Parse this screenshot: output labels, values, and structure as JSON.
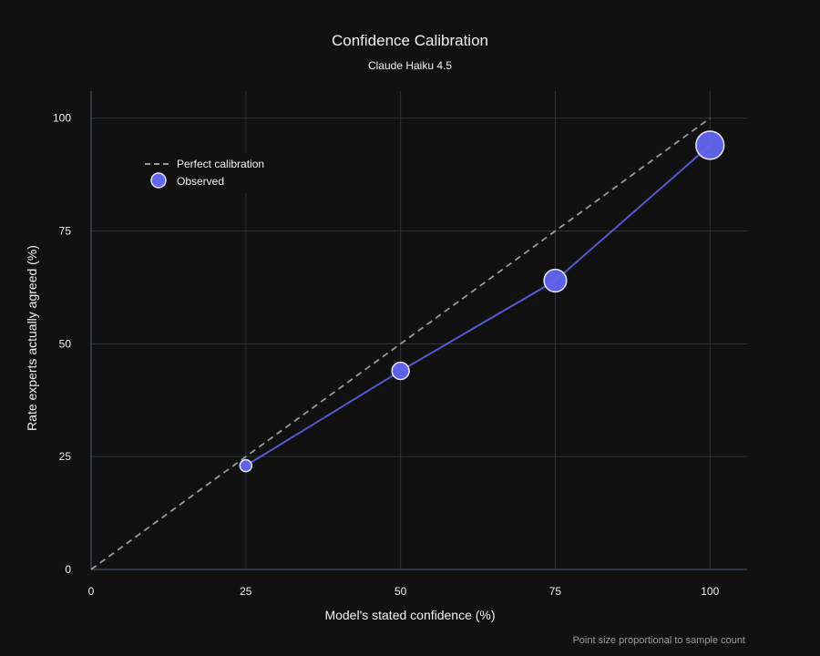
{
  "chart_data": {
    "type": "scatter",
    "title": "Confidence Calibration",
    "subtitle": "Claude Haiku 4.5",
    "xlabel": "Model's stated confidence (%)",
    "ylabel": "Rate experts actually agreed (%)",
    "xlim": [
      0,
      106
    ],
    "ylim": [
      0,
      106
    ],
    "xticks": [
      0,
      25,
      50,
      75,
      100
    ],
    "yticks": [
      0,
      25,
      50,
      75,
      100
    ],
    "grid": true,
    "legend_position": "top-left",
    "series": [
      {
        "name": "Perfect calibration",
        "style": "dashed-line",
        "color": "#9a9a9a",
        "x": [
          0,
          100
        ],
        "y": [
          0,
          100
        ]
      },
      {
        "name": "Observed",
        "style": "markers+line",
        "color": "#6366f1",
        "x": [
          25,
          50,
          75,
          100
        ],
        "y": [
          23,
          44,
          64,
          94
        ],
        "relative_size": [
          1,
          2.1,
          3.6,
          5.6
        ]
      }
    ],
    "footnote": "Point size proportional to sample count"
  }
}
